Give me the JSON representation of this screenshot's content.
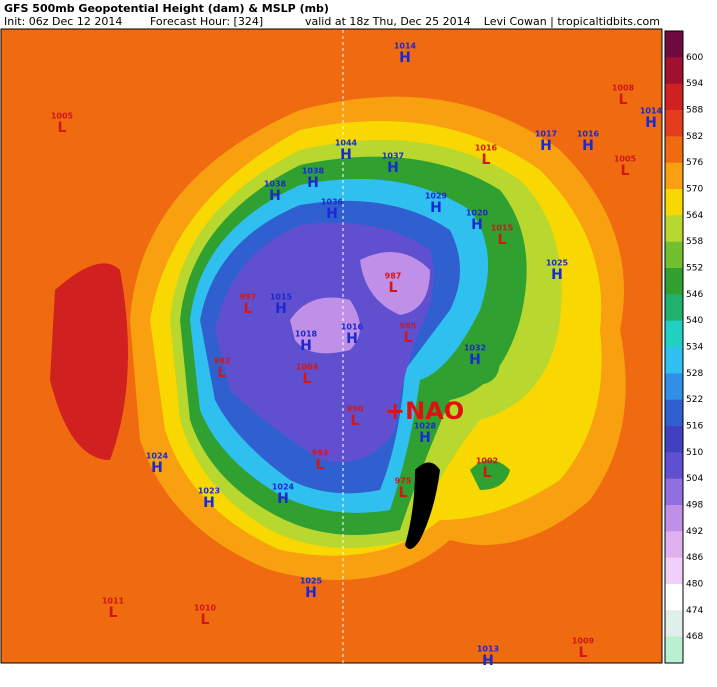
{
  "header": {
    "title": "GFS 500mb Geopotential Height (dam) & MSLP (mb)",
    "init": "Init: 06z Dec 12 2014",
    "forecast": "Forecast Hour: [324]",
    "valid": "valid at 18z Thu, Dec 25 2014",
    "credit": "Levi Cowan | tropicaltidbits.com"
  },
  "colorbar": {
    "labels": [
      600,
      594,
      588,
      582,
      576,
      570,
      564,
      558,
      552,
      546,
      540,
      534,
      528,
      522,
      516,
      510,
      504,
      498,
      492,
      486,
      480,
      474,
      468
    ],
    "colors": [
      "#6e0a3c",
      "#a01030",
      "#d02020",
      "#e63c1e",
      "#f06a10",
      "#f8a010",
      "#f8d800",
      "#b8d830",
      "#70c030",
      "#30a030",
      "#20b070",
      "#20d0c0",
      "#30c0f0",
      "#3090e8",
      "#3060d0",
      "#4040c0",
      "#6050d0",
      "#9070e0",
      "#c090e8",
      "#e0b0f0",
      "#f0d0f8",
      "#ffffff",
      "#e0f0e8",
      "#b8f0d0"
    ]
  },
  "annotation": "+NAO",
  "centers": [
    {
      "letter": "H",
      "value": "1014"
    },
    {
      "letter": "L",
      "value": "1005"
    },
    {
      "letter": "L",
      "value": "1008"
    },
    {
      "letter": "H",
      "value": "1014"
    },
    {
      "letter": "H",
      "value": "1017"
    },
    {
      "letter": "H",
      "value": "1016"
    },
    {
      "letter": "L",
      "value": "1005"
    },
    {
      "letter": "L",
      "value": "1016"
    },
    {
      "letter": "H",
      "value": "1044"
    },
    {
      "letter": "H",
      "value": "1037"
    },
    {
      "letter": "H",
      "value": "1038"
    },
    {
      "letter": "H",
      "value": "1038"
    },
    {
      "letter": "H",
      "value": "1036"
    },
    {
      "letter": "H",
      "value": "1029"
    },
    {
      "letter": "H",
      "value": "1020"
    },
    {
      "letter": "L",
      "value": "1015"
    },
    {
      "letter": "H",
      "value": "1025"
    },
    {
      "letter": "L",
      "value": "987"
    },
    {
      "letter": "L",
      "value": "997"
    },
    {
      "letter": "H",
      "value": "1015"
    },
    {
      "letter": "L",
      "value": "985"
    },
    {
      "letter": "H",
      "value": "1016"
    },
    {
      "letter": "H",
      "value": "1018"
    },
    {
      "letter": "H",
      "value": "1032"
    },
    {
      "letter": "L",
      "value": "982"
    },
    {
      "letter": "L",
      "value": "1004"
    },
    {
      "letter": "L",
      "value": "990"
    },
    {
      "letter": "H",
      "value": "1028"
    },
    {
      "letter": "H",
      "value": "1024"
    },
    {
      "letter": "L",
      "value": "1002"
    },
    {
      "letter": "L",
      "value": "993"
    },
    {
      "letter": "H",
      "value": "1023"
    },
    {
      "letter": "H",
      "value": "1024"
    },
    {
      "letter": "L",
      "value": "975"
    },
    {
      "letter": "H",
      "value": "1025"
    },
    {
      "letter": "L",
      "value": "1011"
    },
    {
      "letter": "L",
      "value": "1010"
    },
    {
      "letter": "L",
      "value": "1009"
    },
    {
      "letter": "H",
      "value": "1013"
    }
  ]
}
